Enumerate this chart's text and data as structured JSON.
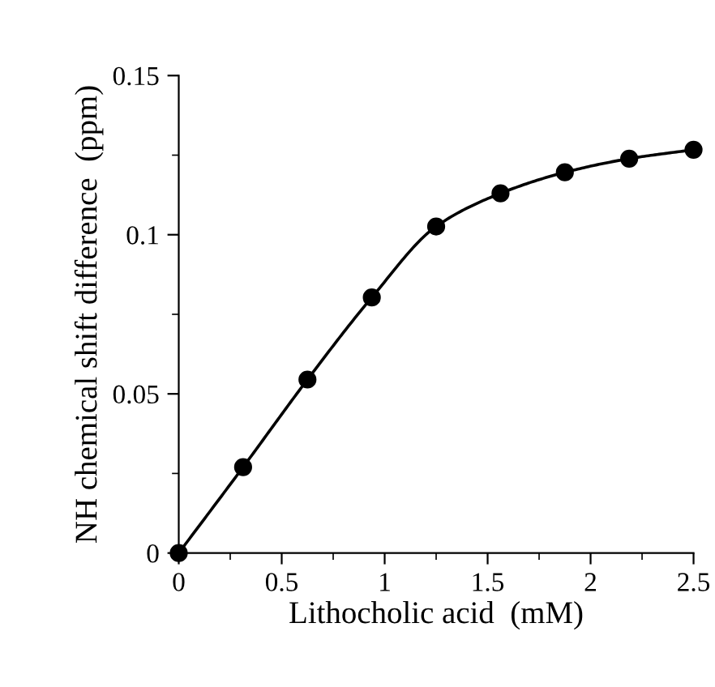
{
  "chart_data": {
    "type": "line",
    "xlabel": "Lithocholic acid  (mM)",
    "ylabel": "NH chemical shift difference  (ppm)",
    "x": [
      0,
      0.3125,
      0.625,
      0.9375,
      1.25,
      1.5625,
      1.875,
      2.1875,
      2.5
    ],
    "series": [
      {
        "color": "#000000",
        "values": [
          0,
          0.027,
          0.0545,
          0.0803,
          0.1026,
          0.113,
          0.1196,
          0.1239,
          0.1267
        ]
      }
    ],
    "xlim": [
      0,
      2.5
    ],
    "ylim": [
      0,
      0.15
    ],
    "xticks": [
      0,
      0.5,
      1,
      1.5,
      2,
      2.5
    ],
    "yticks": [
      0,
      0.05,
      0.1,
      0.15
    ],
    "marker": "circle",
    "line_style": "solid",
    "grid": false,
    "legend": false
  }
}
